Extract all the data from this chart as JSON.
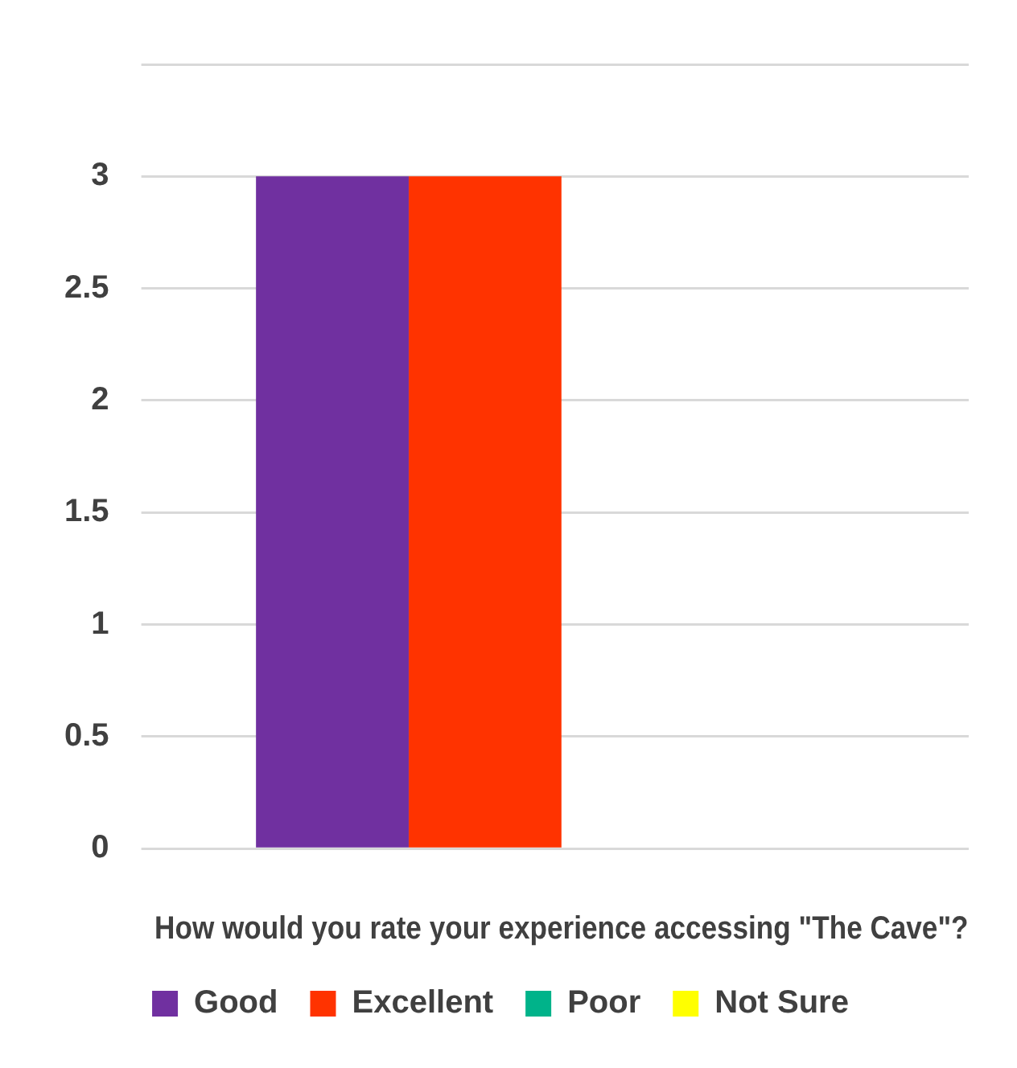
{
  "chart_data": {
    "type": "bar",
    "xlabel": "How would you rate your experience accessing \"The Cave\"?",
    "categories": [
      null
    ],
    "series": [
      {
        "name": "Good",
        "color": "#7030a0",
        "values": [
          3
        ]
      },
      {
        "name": "Excellent",
        "color": "#ff3300",
        "values": [
          3
        ]
      },
      {
        "name": "Poor",
        "color": "#00b38a",
        "values": [
          0
        ]
      },
      {
        "name": "Not Sure",
        "color": "#ffff00",
        "values": [
          0
        ]
      }
    ],
    "ylim": [
      0,
      3.5
    ],
    "yticks": [
      0,
      0.5,
      1,
      1.5,
      2,
      2.5,
      3,
      {
        "value": 3.5,
        "label": null
      }
    ],
    "grid": "y",
    "legend": "bottom"
  }
}
